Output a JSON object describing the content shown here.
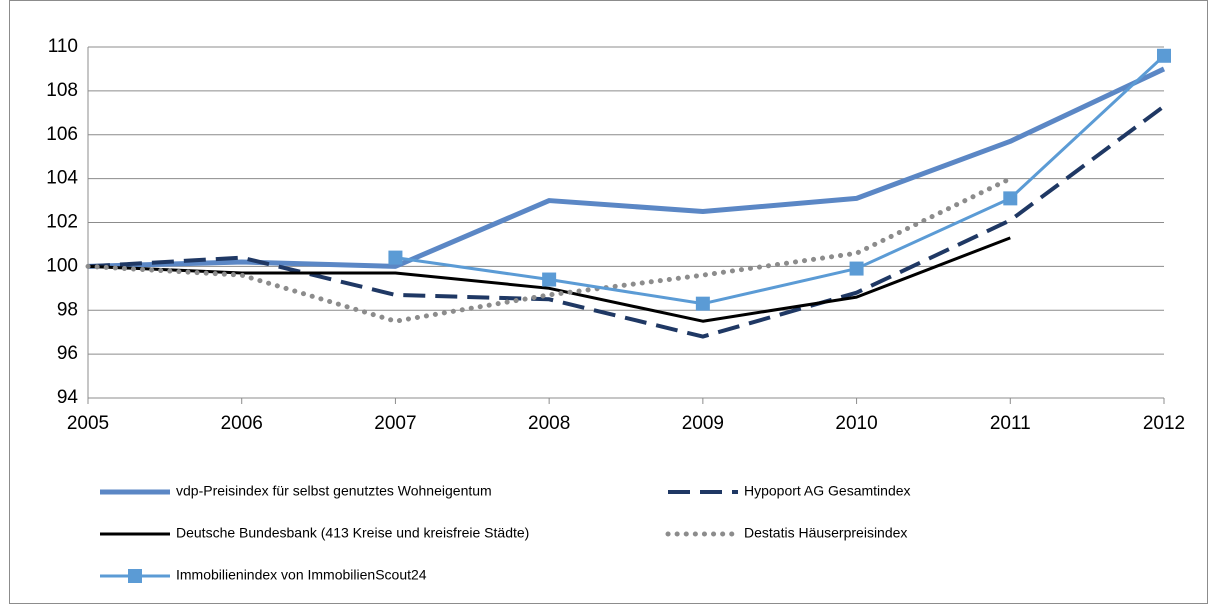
{
  "chart_data": {
    "type": "line",
    "x": [
      2005,
      2006,
      2007,
      2008,
      2009,
      2010,
      2011,
      2012
    ],
    "xlim": [
      2005,
      2012
    ],
    "xticks": [
      2005,
      2006,
      2007,
      2008,
      2009,
      2010,
      2011,
      2012
    ],
    "ylim": [
      94,
      110
    ],
    "yticks": [
      94,
      96,
      98,
      100,
      102,
      104,
      106,
      108,
      110
    ],
    "grid": true,
    "legend": "bottom",
    "series": [
      {
        "name": "vdp-Preisindex für selbst genutztes Wohneigentum",
        "color": "#5b87c5",
        "style": "thick",
        "values": [
          100,
          100.2,
          100,
          103,
          102.5,
          103.1,
          105.7,
          109
        ]
      },
      {
        "name": "Hypoport AG Gesamtindex",
        "color": "#1f3864",
        "style": "dashed",
        "values": [
          100,
          100.4,
          98.7,
          98.5,
          96.8,
          98.8,
          102.1,
          107.3
        ]
      },
      {
        "name": "Deutsche Bundesbank (413 Kreise und kreisfreie Städte)",
        "color": "#000000",
        "style": "solid",
        "values": [
          100,
          99.7,
          99.7,
          99,
          97.5,
          98.6,
          101.3,
          null
        ]
      },
      {
        "name": "Destatis Häuserpreisindex",
        "color": "#8c8c8c",
        "style": "dotted",
        "values": [
          100,
          99.6,
          97.5,
          98.7,
          99.6,
          100.6,
          104,
          null
        ]
      },
      {
        "name": "Immobilienindex von ImmobilienScout24",
        "color": "#5b9bd5",
        "style": "marker",
        "values": [
          null,
          null,
          100.4,
          99.4,
          98.3,
          99.9,
          103.1,
          109.6
        ]
      }
    ]
  }
}
